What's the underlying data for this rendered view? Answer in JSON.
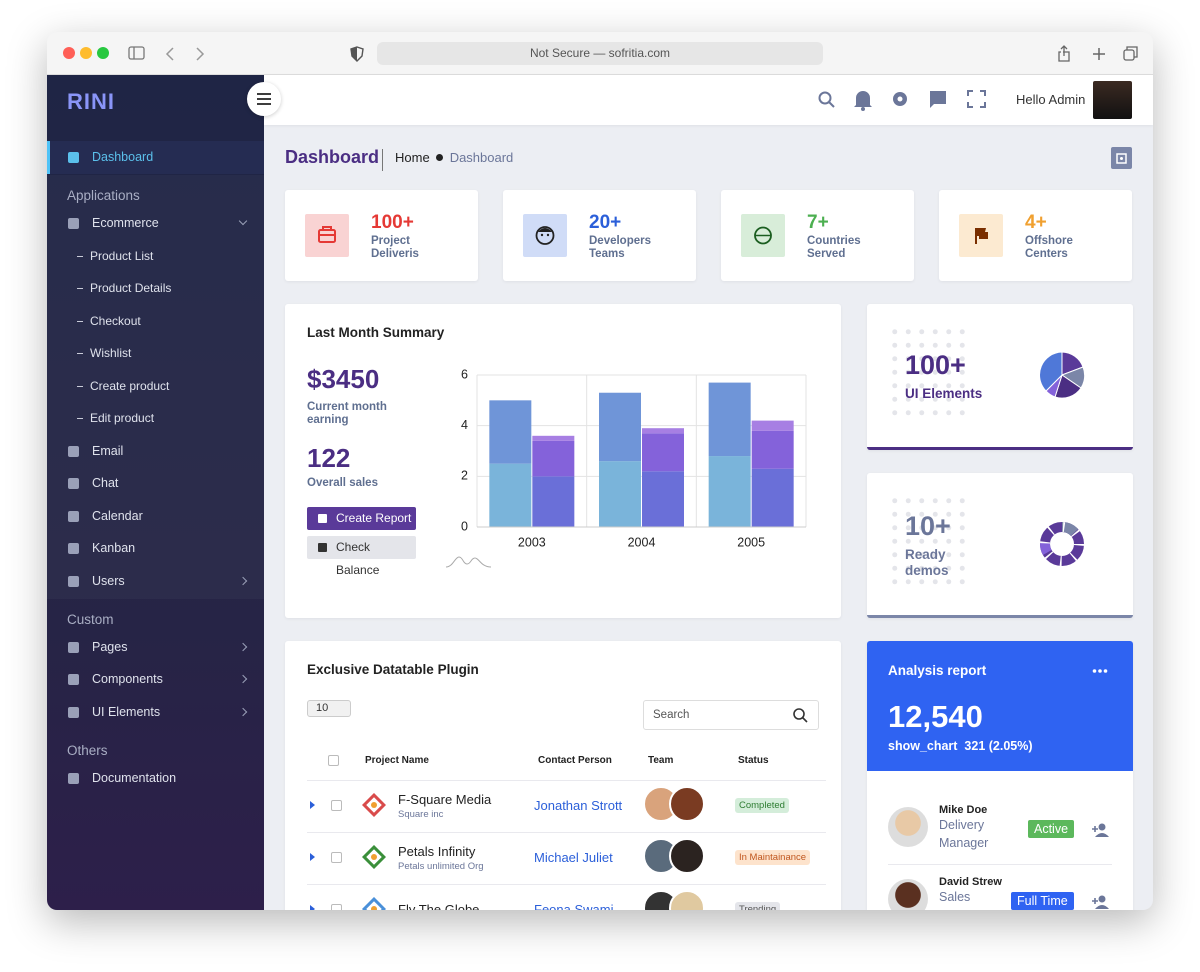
{
  "browser": {
    "address": "Not Secure — sofritia.com"
  },
  "sidebar": {
    "logo": "RINI",
    "sections": [
      {
        "items": [
          {
            "label": "Dashboard",
            "active": true
          }
        ]
      },
      {
        "title": "Applications",
        "items": [
          {
            "label": "Ecommerce",
            "arrow": "down",
            "children": [
              "Product List",
              "Product Details",
              "Checkout",
              "Wishlist",
              "Create product",
              "Edit product"
            ]
          },
          {
            "label": "Email"
          },
          {
            "label": "Chat"
          },
          {
            "label": "Calendar"
          },
          {
            "label": "Kanban"
          },
          {
            "label": "Users",
            "arrow": "right"
          }
        ]
      },
      {
        "title": "Custom",
        "items": [
          {
            "label": "Pages",
            "arrow": "right"
          },
          {
            "label": "Components",
            "arrow": "right"
          },
          {
            "label": "UI Elements",
            "arrow": "right"
          }
        ]
      },
      {
        "title": "Others",
        "items": [
          {
            "label": "Documentation"
          }
        ]
      }
    ]
  },
  "header": {
    "greeting": "Hello Admin"
  },
  "page": {
    "title": "Dashboard",
    "breadcrumb": [
      "Home",
      "Dashboard"
    ]
  },
  "stats": [
    {
      "value": "100+",
      "label": "Project Deliveris",
      "color": "#e53935"
    },
    {
      "value": "20+",
      "label": "Developers Teams",
      "color": "#2b5fd9"
    },
    {
      "value": "7+",
      "label": "Countries Served",
      "color": "#4caf50"
    },
    {
      "value": "4+",
      "label": "Offshore Centers",
      "color": "#f0a030"
    }
  ],
  "summary": {
    "title": "Last Month Summary",
    "earning": "$3450",
    "earning_label": "Current month earning",
    "sales": "122",
    "sales_label": "Overall sales",
    "actions": [
      "Create Report",
      "Check Balance"
    ]
  },
  "chart_data": {
    "type": "bar",
    "stacked": true,
    "categories": [
      "2003",
      "2004",
      "2005"
    ],
    "series": [
      {
        "stack": 0,
        "color": "#7ab4da",
        "values": [
          2.5,
          2.6,
          2.8
        ]
      },
      {
        "stack": 0,
        "color": "#6f95d8",
        "values": [
          2.5,
          2.7,
          2.9
        ]
      },
      {
        "stack": 1,
        "color": "#6a6fd8",
        "values": [
          2.0,
          2.2,
          2.3
        ]
      },
      {
        "stack": 1,
        "color": "#8462da",
        "values": [
          1.4,
          1.5,
          1.5
        ]
      },
      {
        "stack": 1,
        "color": "#a77fe3",
        "values": [
          0.2,
          0.2,
          0.4
        ]
      }
    ],
    "ylim": [
      0,
      6
    ],
    "yticks": [
      0,
      2,
      4,
      6
    ],
    "grid": true
  },
  "widgets": [
    {
      "value": "100+",
      "label": "UI Elements"
    },
    {
      "value": "10+",
      "label": "Ready demos"
    }
  ],
  "datatable": {
    "title": "Exclusive Datatable Plugin",
    "page_size": "10",
    "search": "Search",
    "columns": [
      "Project Name",
      "Contact Person",
      "Team",
      "Status"
    ],
    "rows": [
      {
        "name": "F-Square Media",
        "org": "Square inc",
        "contact": "Jonathan Strott",
        "status": "Completed"
      },
      {
        "name": "Petals Infinity",
        "org": "Petals unlimited Org",
        "contact": "Michael Juliet",
        "status": "In Maintainance"
      },
      {
        "name": "Fly The Globe",
        "contact": "Feona Swami",
        "status": "Trending"
      }
    ]
  },
  "analysis": {
    "title": "Analysis report",
    "total": "12,540",
    "icon": "show_chart",
    "change": "321 (2.05%)",
    "people": [
      {
        "name": "Mike Doe",
        "role": "Delivery Manager",
        "status": "Active"
      },
      {
        "name": "David Strew",
        "role": "Sales",
        "status": "Full Time"
      }
    ]
  }
}
